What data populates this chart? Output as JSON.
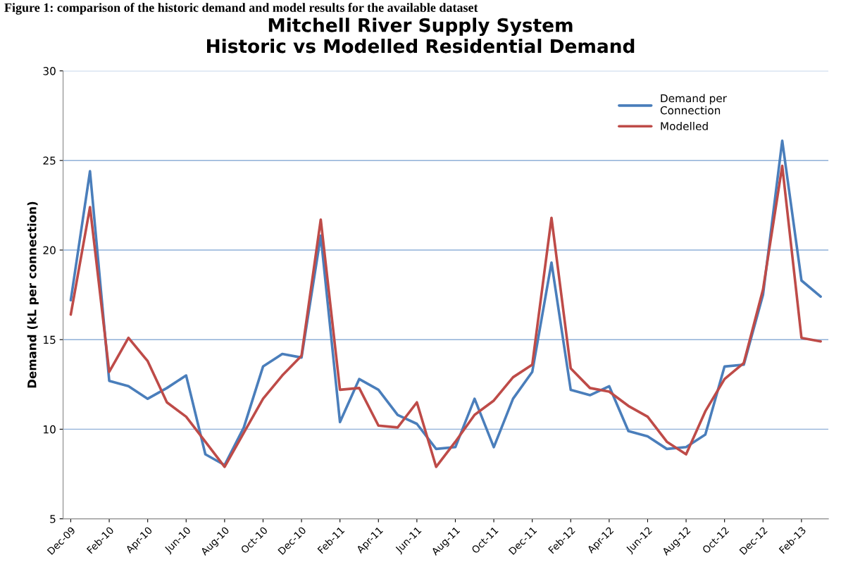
{
  "chart_data": {
    "type": "line",
    "title": "Mitchell River Supply System\nHistoric vs Modelled Residential Demand",
    "ylabel": "Demand (kL per connection)",
    "annotations": [
      "Figure 1: comparison of the historic demand and model results for the available dataset"
    ],
    "categories": [
      "Dec-09",
      null,
      "Feb-10",
      null,
      "Apr-10",
      null,
      "Jun-10",
      null,
      "Aug-10",
      null,
      "Oct-10",
      null,
      "Dec-10",
      null,
      "Feb-11",
      null,
      "Apr-11",
      null,
      "Jun-11",
      null,
      "Aug-11",
      null,
      "Oct-11",
      null,
      "Dec-11",
      null,
      "Feb-12",
      null,
      "Apr-12",
      null,
      "Jun-12",
      null,
      "Aug-12",
      null,
      "Oct-12",
      null,
      "Dec-12",
      null,
      "Feb-13",
      null
    ],
    "series": [
      {
        "name": "Demand per\nConnection",
        "color": "#4a7ebb",
        "values": [
          17.2,
          24.4,
          12.7,
          12.4,
          11.7,
          12.3,
          13.0,
          8.6,
          8.0,
          10.1,
          13.5,
          14.2,
          14.0,
          20.8,
          10.4,
          12.8,
          12.2,
          10.8,
          10.3,
          8.9,
          9.0,
          11.7,
          9.0,
          11.7,
          13.2,
          19.3,
          12.2,
          11.9,
          12.4,
          9.9,
          9.6,
          8.9,
          9.0,
          9.7,
          13.5,
          13.6,
          17.5,
          26.1,
          18.3,
          17.4
        ]
      },
      {
        "name": "Modelled",
        "color": "#be4b48",
        "values": [
          16.4,
          22.4,
          13.2,
          15.1,
          13.8,
          11.5,
          10.7,
          9.3,
          7.9,
          9.8,
          11.7,
          13.0,
          14.1,
          21.7,
          12.2,
          12.3,
          10.2,
          10.1,
          11.5,
          7.9,
          9.3,
          10.8,
          11.6,
          12.9,
          13.6,
          21.8,
          13.4,
          12.3,
          12.1,
          11.3,
          10.7,
          9.3,
          8.6,
          11.0,
          12.8,
          13.7,
          17.8,
          24.7,
          15.1,
          14.9
        ]
      }
    ],
    "ylim": [
      5,
      30
    ],
    "yticks": [
      5,
      10,
      15,
      20,
      25,
      30
    ],
    "grid": "y",
    "legend": "top right",
    "marker": "none",
    "line_style": "solid"
  }
}
